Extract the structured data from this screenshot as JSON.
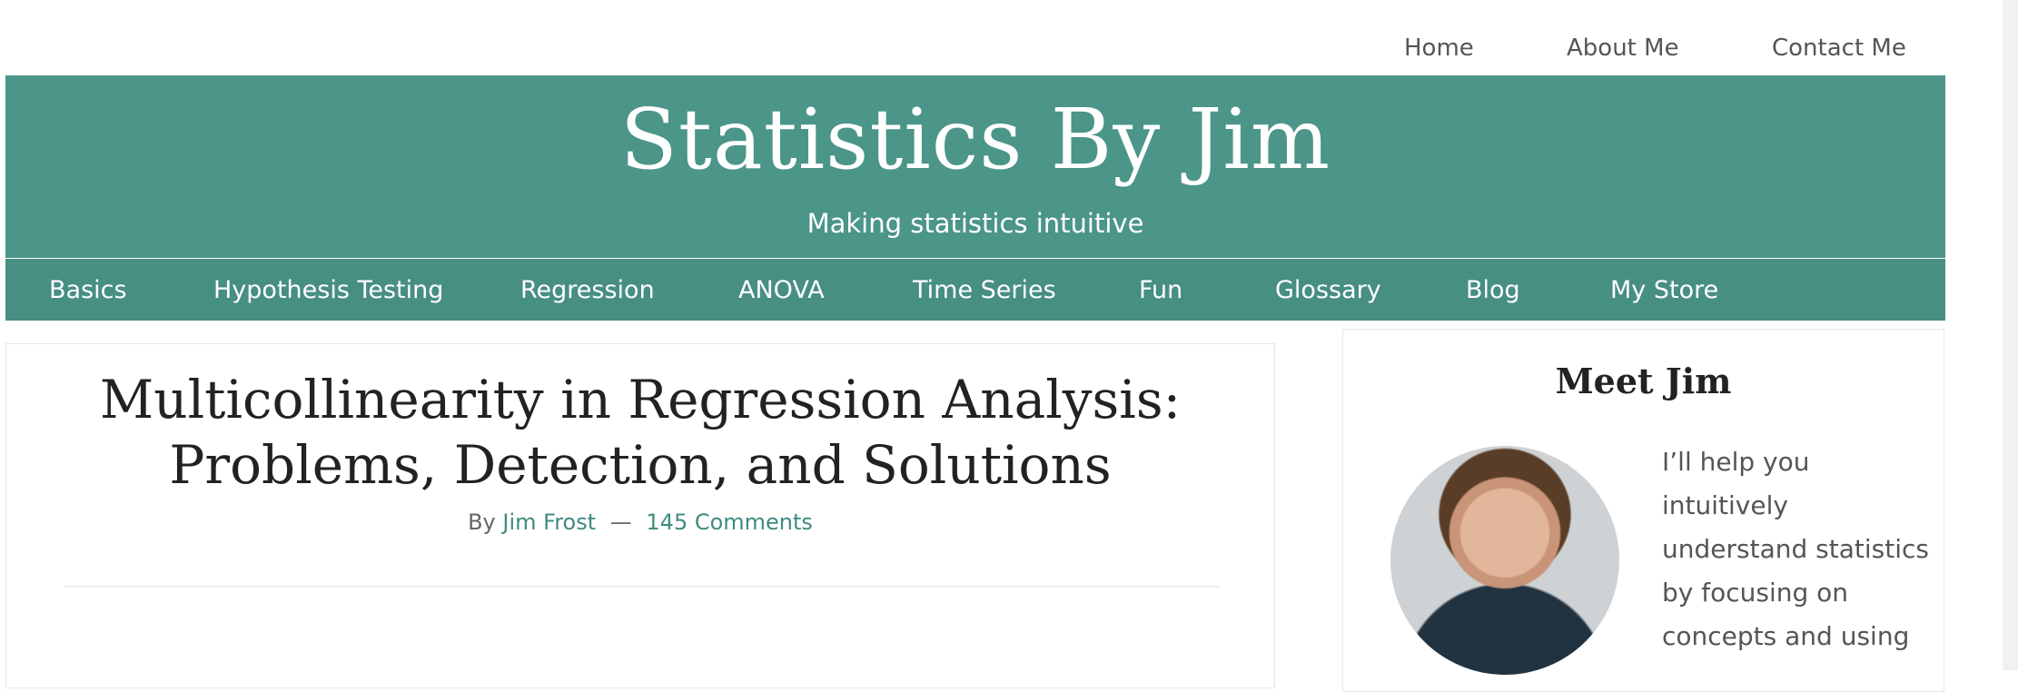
{
  "top_nav": {
    "items": [
      {
        "label": "Home"
      },
      {
        "label": "About Me"
      },
      {
        "label": "Contact Me"
      }
    ]
  },
  "header": {
    "site_title": "Statistics By Jim",
    "tagline": "Making statistics intuitive"
  },
  "main_nav": {
    "items": [
      {
        "label": "Basics"
      },
      {
        "label": "Hypothesis Testing"
      },
      {
        "label": "Regression"
      },
      {
        "label": "ANOVA"
      },
      {
        "label": "Time Series"
      },
      {
        "label": "Fun"
      },
      {
        "label": "Glossary"
      },
      {
        "label": "Blog"
      },
      {
        "label": "My Store"
      }
    ]
  },
  "article": {
    "title_line1": "Multicollinearity in Regression Analysis:",
    "title_line2": "Problems, Detection, and Solutions",
    "by_prefix": "By",
    "author": "Jim Frost",
    "separator": "—",
    "comments": "145 Comments"
  },
  "sidebar": {
    "widget_title": "Meet Jim",
    "bio_lines": [
      "I’ll help you",
      "intuitively",
      "understand statistics",
      "by focusing on",
      "concepts and using"
    ]
  },
  "colors": {
    "brand_teal": "#4b9589",
    "nav_teal": "#478e83",
    "link_teal": "#3f8b7f"
  }
}
